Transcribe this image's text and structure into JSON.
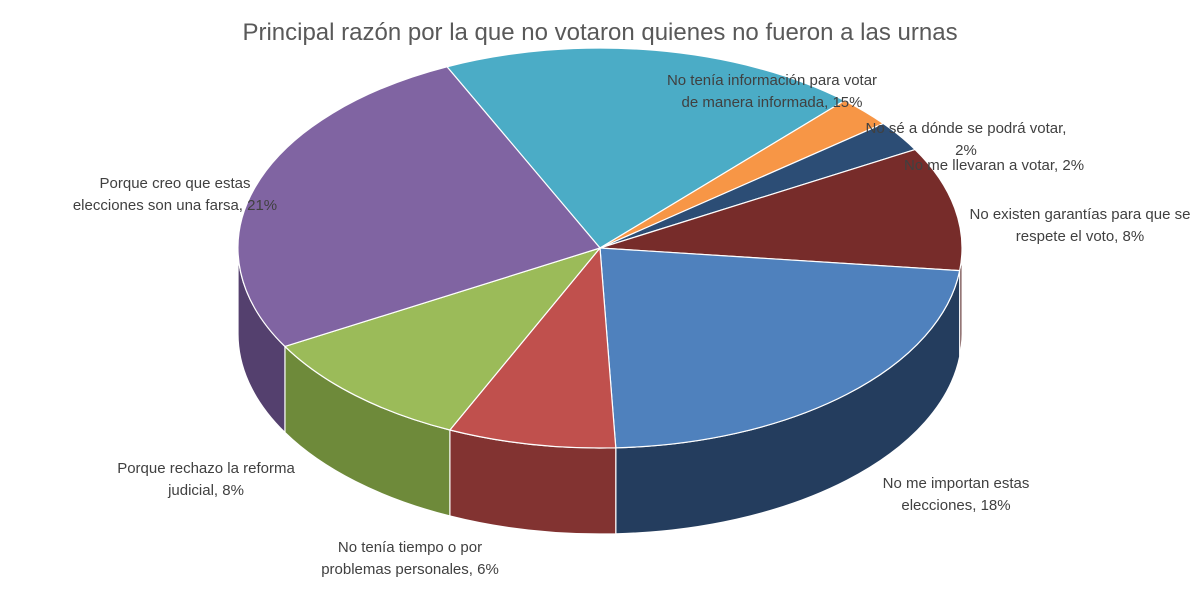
{
  "chart_data": {
    "type": "pie",
    "title": "Principal razón por la que no votaron quienes no fueron a las urnas",
    "slices": [
      {
        "label": [
          "No tenía información para votar",
          "de manera informada, 15%"
        ],
        "value": 15,
        "color": "#4BACC6",
        "side": "#2E7E94"
      },
      {
        "label": [
          "No sé a dónde se podrá votar,",
          "2%"
        ],
        "value": 2,
        "color": "#F79646",
        "side": "#B8651D"
      },
      {
        "label": [
          "No me llevaran a votar, 2%"
        ],
        "value": 2,
        "color": "#2C4D75",
        "side": "#1B3150"
      },
      {
        "label": [
          "No existen garantías para que se",
          "respete el voto, 8%"
        ],
        "value": 8,
        "color": "#772C2A",
        "side": "#4F1C1B"
      },
      {
        "label": [
          "No me importan estas",
          "elecciones, 18%"
        ],
        "value": 18,
        "color": "#4F81BD",
        "side": "#243D5E"
      },
      {
        "label": [
          "No tenía tiempo o por",
          "problemas personales, 6%"
        ],
        "value": 6,
        "color": "#C0504D",
        "side": "#823331"
      },
      {
        "label": [
          "Porque rechazo la reforma",
          "judicial, 8%"
        ],
        "value": 8,
        "color": "#9BBB59",
        "side": "#6E8A3A"
      },
      {
        "label": [
          "Porque creo que estas",
          "elecciones son una farsa, 21%"
        ],
        "value": 21,
        "color": "#8064A2",
        "side": "#54406E"
      }
    ]
  }
}
